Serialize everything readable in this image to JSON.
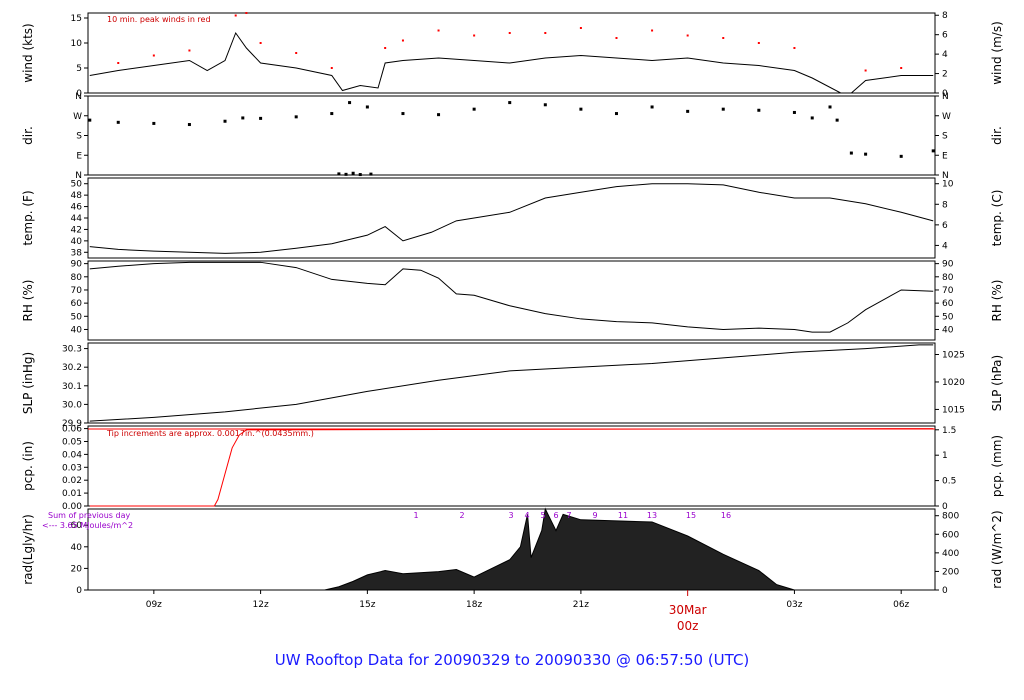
{
  "title": {
    "prefix": "UW Rooftop Data for",
    "start": "20090329",
    "joiner": "to",
    "end": "20090330",
    "at": "@",
    "time": "06:57:50",
    "tz": "(UTC)"
  },
  "colors": {
    "series": "#000000",
    "peak": "#ff0000",
    "precip": "#ff0000",
    "note": "#cc0000",
    "radiation_note": "#9900cc",
    "title": "#1a1aff",
    "date_marker": "#cc0000"
  },
  "x_axis": {
    "ticks": [
      "09z",
      "12z",
      "15z",
      "18z",
      "21z",
      "03z",
      "06z"
    ],
    "date_label": "30Mar",
    "date_sub": "00z",
    "xlim_hours": [
      7.15,
      30.95
    ]
  },
  "chart_data": [
    {
      "type": "line",
      "id": "wind",
      "ylabel_left": "wind (kts)",
      "ylabel_right": "wind (m/s)",
      "ylim": [
        0,
        16
      ],
      "yticks_left": [
        "0",
        "5",
        "10",
        "15"
      ],
      "yticks_right": [
        "0",
        "2",
        "4",
        "6",
        "8"
      ],
      "annotation": "10 min. peak winds in red",
      "series": [
        {
          "x": [
            7.2,
            8,
            9,
            10,
            10.5,
            11,
            11.3,
            11.6,
            12,
            13,
            14,
            14.3,
            14.8,
            15.3,
            15.5,
            16,
            17,
            18,
            19,
            20,
            21,
            22,
            23,
            24,
            25,
            26,
            27,
            27.5,
            28.3,
            28.6,
            29,
            30,
            30.9
          ],
          "y": [
            3.5,
            4.5,
            5.5,
            6.5,
            4.5,
            6.5,
            12,
            9,
            6,
            5,
            3.5,
            0.5,
            1.5,
            1,
            6,
            6.5,
            7,
            6.5,
            6,
            7,
            7.5,
            7,
            6.5,
            7,
            6,
            5.5,
            4.5,
            3,
            0,
            0,
            2.5,
            3.5,
            3.5
          ]
        },
        {
          "name": "10 min. peak",
          "x": [
            8,
            9,
            10,
            11.3,
            11.6,
            12,
            13,
            14,
            15.5,
            16,
            17,
            18,
            19,
            20,
            21,
            22,
            23,
            24,
            25,
            26,
            27,
            29,
            30
          ],
          "y": [
            6,
            7.5,
            8.5,
            15.5,
            16,
            10,
            8,
            5,
            9,
            10.5,
            12.5,
            11.5,
            12,
            12,
            13,
            11,
            12.5,
            11.5,
            11,
            10,
            9,
            4.5,
            5
          ]
        }
      ]
    },
    {
      "type": "scatter",
      "id": "dir",
      "ylabel_left": "dir.",
      "ylabel_right": "dir.",
      "ylim": [
        0,
        360
      ],
      "yticks_left": [
        "N",
        "E",
        "S",
        "W",
        "N"
      ],
      "yticks_right": [
        "N",
        "E",
        "S",
        "W",
        "N"
      ],
      "series": [
        {
          "x": [
            7.2,
            8,
            9,
            10,
            11,
            11.5,
            12,
            13,
            14,
            14.5,
            15,
            16,
            17,
            18,
            19,
            20,
            21,
            22,
            23,
            24,
            25,
            26,
            27,
            27.5,
            28,
            28.2,
            28.6,
            29,
            30,
            30.9
          ],
          "y": [
            250,
            240,
            235,
            230,
            245,
            260,
            258,
            265,
            280,
            330,
            310,
            280,
            275,
            300,
            330,
            320,
            300,
            280,
            310,
            290,
            300,
            295,
            285,
            260,
            310,
            250,
            100,
            95,
            85,
            110
          ]
        },
        {
          "name": "north",
          "x": [
            14.2,
            14.4,
            14.6,
            14.8,
            15.1
          ],
          "y": [
            5,
            3,
            8,
            2,
            4
          ]
        }
      ]
    },
    {
      "type": "line",
      "id": "temp",
      "ylabel_left": "temp. (F)",
      "ylabel_right": "temp. (C)",
      "ylim": [
        37,
        51
      ],
      "yticks_left": [
        "38",
        "40",
        "42",
        "44",
        "46",
        "48",
        "50"
      ],
      "yticks_right": [
        "4",
        "6",
        "8",
        "10"
      ],
      "series": [
        {
          "x": [
            7.2,
            8,
            9,
            10,
            11,
            12,
            13,
            14,
            15,
            15.5,
            16,
            16.8,
            17.5,
            18,
            19,
            20,
            21,
            22,
            23,
            24,
            25,
            26,
            27,
            28,
            29,
            30,
            30.9
          ],
          "y": [
            39,
            38.5,
            38.2,
            38,
            37.8,
            38,
            38.7,
            39.5,
            41,
            42.5,
            40,
            41.5,
            43.5,
            44,
            45,
            47.5,
            48.5,
            49.5,
            50,
            50,
            49.8,
            48.5,
            47.5,
            47.5,
            46.5,
            45,
            43.5
          ]
        }
      ]
    },
    {
      "type": "line",
      "id": "rh",
      "ylabel_left": "RH (%)",
      "ylabel_right": "RH (%)",
      "ylim": [
        32,
        92
      ],
      "yticks_left": [
        "40",
        "50",
        "60",
        "70",
        "80",
        "90"
      ],
      "yticks_right": [
        "40",
        "50",
        "60",
        "70",
        "80",
        "90"
      ],
      "series": [
        {
          "x": [
            7.2,
            8,
            9,
            10,
            11,
            12,
            13,
            14,
            15,
            15.5,
            16,
            16.5,
            17,
            17.5,
            18,
            19,
            20,
            21,
            22,
            23,
            24,
            25,
            26,
            27,
            27.5,
            28,
            28.5,
            29,
            30,
            30.9
          ],
          "y": [
            86,
            88,
            90,
            91,
            91,
            91,
            87,
            78,
            75,
            74,
            86,
            85,
            79,
            67,
            66,
            58,
            52,
            48,
            46,
            45,
            42,
            40,
            41,
            40,
            38,
            38,
            45,
            55,
            70,
            69
          ]
        }
      ]
    },
    {
      "type": "line",
      "id": "slp",
      "ylabel_left": "SLP (inHg)",
      "ylabel_right": "SLP (hPa)",
      "ylim": [
        29.9,
        30.33
      ],
      "yticks_left": [
        "29.9",
        "30.0",
        "30.1",
        "30.2",
        "30.3"
      ],
      "yticks_right": [
        "1015",
        "1020",
        "1025"
      ],
      "series": [
        {
          "x": [
            7.2,
            9,
            11,
            13,
            15,
            17,
            19,
            21,
            23,
            25,
            27,
            29,
            30.5,
            30.9
          ],
          "y": [
            29.91,
            29.93,
            29.96,
            30.0,
            30.07,
            30.13,
            30.18,
            30.2,
            30.22,
            30.25,
            30.28,
            30.3,
            30.32,
            30.32
          ]
        }
      ]
    },
    {
      "type": "line",
      "id": "pcp",
      "ylabel_left": "pcp. (in)",
      "ylabel_right": "pcp. (mm)",
      "ylim": [
        0,
        0.062
      ],
      "yticks_left": [
        "0.00",
        "0.01",
        "0.02",
        "0.03",
        "0.04",
        "0.05",
        "0.06"
      ],
      "yticks_right": [
        "0",
        "0.5",
        "1",
        "1.5"
      ],
      "annotation": "Tip increments are approx. 0.0017in.^(0.0435mm.)",
      "series": [
        {
          "name": "precip",
          "x": [
            7.2,
            10.7,
            10.8,
            11.0,
            11.2,
            11.4,
            11.6,
            30.9
          ],
          "y": [
            0,
            0,
            0.005,
            0.025,
            0.045,
            0.055,
            0.059,
            0.06
          ]
        }
      ]
    },
    {
      "type": "area",
      "id": "rad",
      "ylabel_left": "rad(Lgly/hr)",
      "ylabel_right": "rad (W/m^2)",
      "ylim": [
        0,
        75
      ],
      "yticks_left": [
        "0",
        "20",
        "40",
        "60"
      ],
      "yticks_right": [
        "0",
        "200",
        "400",
        "600",
        "800"
      ],
      "annotation_line1": "Sum of previous day",
      "annotation_line2": "<--- 3.65 MJoules/m^2",
      "hour_labels": [
        "1",
        "2",
        "3",
        "4",
        "5",
        "6",
        "7",
        "9",
        "11",
        "13",
        "15",
        "16"
      ],
      "series": [
        {
          "x": [
            13.8,
            14.2,
            14.6,
            15.0,
            15.5,
            16.0,
            17.0,
            17.5,
            18.0,
            19.0,
            19.3,
            19.5,
            19.6,
            19.9,
            20.0,
            20.3,
            20.5,
            21.0,
            22.0,
            23.0,
            24.0,
            25.0,
            26.0,
            26.5,
            27.0
          ],
          "y": [
            0,
            3,
            8,
            14,
            18,
            15,
            17,
            19,
            12,
            28,
            40,
            70,
            30,
            55,
            75,
            55,
            70,
            65,
            64,
            63,
            50,
            33,
            18,
            5,
            0
          ]
        }
      ]
    }
  ]
}
